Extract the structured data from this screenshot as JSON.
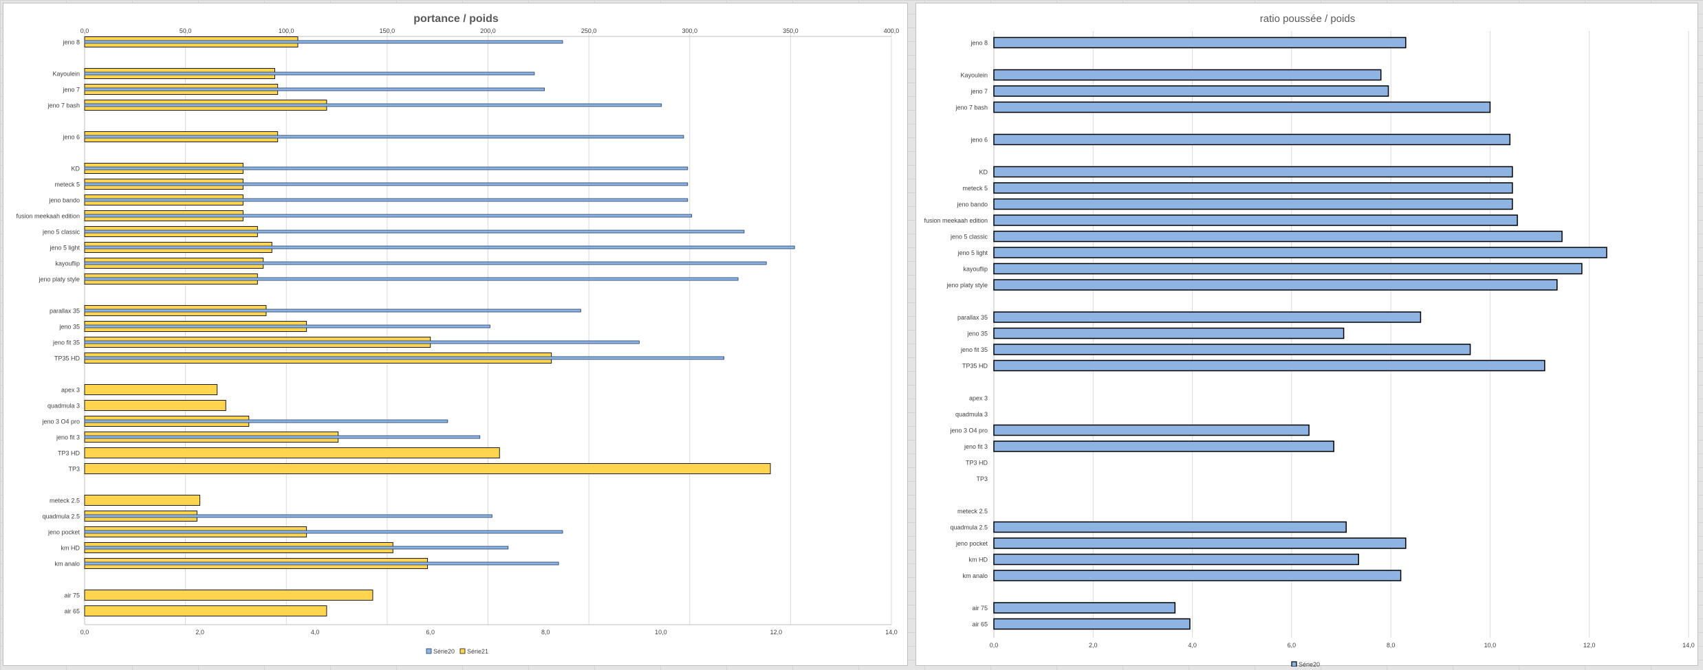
{
  "colors": {
    "yellow": "#FFD54F",
    "yellow_stroke": "#1a1a1a",
    "blue": "#8DB4E2",
    "blue_stroke": "#000000",
    "grid": "#d9d9d9",
    "text": "#404040",
    "title": "#595959"
  },
  "chart_data": [
    {
      "type": "bar",
      "orientation": "horizontal",
      "title": "portance / poids",
      "legend_position": "bottom",
      "categories": [
        "jeno 8",
        "",
        "Kayoulein",
        "jeno 7",
        "jeno 7 bash",
        "",
        "jeno 6",
        "",
        "KD",
        "meteck 5",
        "jeno bando",
        "fusion meekaah edition",
        "jeno 5 classic",
        "jeno 5 light",
        "kayouflip",
        "jeno platy style",
        "",
        "parallax 35",
        "jeno 35",
        "jeno fit 35",
        "TP35 HD",
        "",
        "apex 3",
        "quadmula 3",
        "jeno 3 O4 pro",
        "jeno fit 3",
        "TP3 HD",
        "TP3",
        "",
        "meteck 2.5",
        "quadmula 2.5",
        "jeno pocket",
        "km HD",
        "km analo",
        "",
        "air 75",
        "air 65"
      ],
      "secondary_axis": {
        "ticks": [
          "0,0",
          "50,0",
          "100,0",
          "150,0",
          "200,0",
          "250,0",
          "300,0",
          "350,0",
          "400,0"
        ],
        "range": [
          0,
          400
        ]
      },
      "primary_axis": {
        "ticks": [
          "0,0",
          "2,0",
          "4,0",
          "6,0",
          "8,0",
          "10,0",
          "12,0",
          "14,0"
        ],
        "range": [
          0,
          14
        ]
      },
      "series": [
        {
          "name": "Série20",
          "axis": "secondary",
          "color": "#8DB4E2",
          "values": [
            237,
            null,
            223,
            228,
            286,
            null,
            297,
            null,
            299,
            299,
            299,
            301,
            327,
            352,
            338,
            324,
            null,
            246,
            201,
            275,
            317,
            null,
            null,
            null,
            180,
            196,
            null,
            null,
            null,
            null,
            202,
            237,
            210,
            235,
            null,
            null,
            null
          ]
        },
        {
          "name": "Série21",
          "axis": "primary",
          "color": "#FFD54F",
          "values": [
            3.7,
            null,
            3.3,
            3.35,
            4.2,
            null,
            3.35,
            null,
            2.75,
            2.75,
            2.75,
            2.75,
            3.0,
            3.25,
            3.1,
            3.0,
            null,
            3.15,
            3.85,
            6.0,
            8.1,
            null,
            2.3,
            2.45,
            2.85,
            4.4,
            7.2,
            11.9,
            null,
            2.0,
            1.95,
            3.85,
            5.35,
            5.95,
            null,
            5.0,
            4.2
          ]
        }
      ],
      "legend": [
        "Série20",
        "Série21"
      ]
    },
    {
      "type": "bar",
      "orientation": "horizontal",
      "title": "ratio poussée / poids",
      "legend_position": "bottom",
      "categories": [
        "jeno 8",
        "",
        "Kayoulein",
        "jeno 7",
        "jeno 7 bash",
        "",
        "jeno 6",
        "",
        "KD",
        "meteck 5",
        "jeno bando",
        "fusion meekaah edition",
        "jeno 5 classic",
        "jeno 5 light",
        "kayouflip",
        "jeno platy style",
        "",
        "parallax 35",
        "jeno 35",
        "jeno fit 35",
        "TP35 HD",
        "",
        "apex 3",
        "quadmula 3",
        "jeno 3 O4 pro",
        "jeno fit 3",
        "TP3 HD",
        "TP3",
        "",
        "meteck 2.5",
        "quadmula 2.5",
        "jeno pocket",
        "km HD",
        "km analo",
        "",
        "air 75",
        "air 65"
      ],
      "x_axis": {
        "ticks": [
          "0,0",
          "2,0",
          "4,0",
          "6,0",
          "8,0",
          "10,0",
          "12,0",
          "14,0"
        ],
        "range": [
          0,
          14
        ]
      },
      "series": [
        {
          "name": "Série20",
          "color": "#8DB4E2",
          "values": [
            8.3,
            null,
            7.8,
            7.95,
            10.0,
            null,
            10.4,
            null,
            10.45,
            10.45,
            10.45,
            10.55,
            11.45,
            12.35,
            11.85,
            11.35,
            null,
            8.6,
            7.05,
            9.6,
            11.1,
            null,
            null,
            null,
            6.35,
            6.85,
            null,
            null,
            null,
            null,
            7.1,
            8.3,
            7.35,
            8.2,
            null,
            3.65,
            3.95
          ]
        }
      ],
      "legend": [
        "Série20"
      ]
    }
  ]
}
